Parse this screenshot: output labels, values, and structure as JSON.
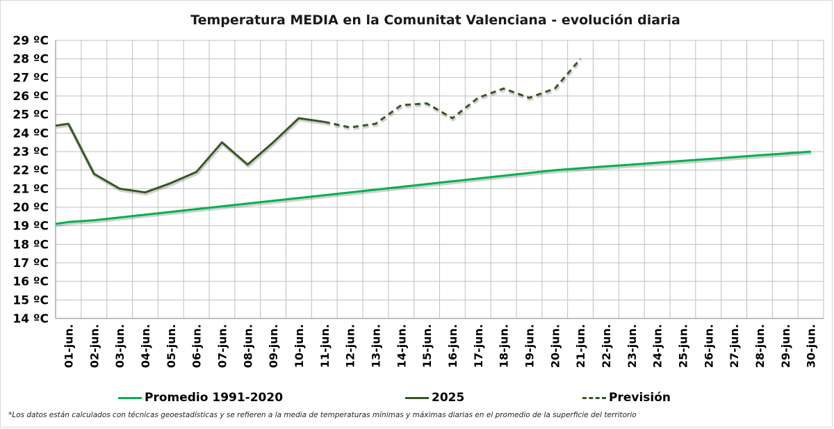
{
  "chart_data": {
    "type": "line",
    "title": "Temperatura MEDIA en la Comunitat Valenciana - evolución diaria",
    "ylim": [
      14,
      29
    ],
    "y_unit": "ºC",
    "y_ticks": [
      14,
      15,
      16,
      17,
      18,
      19,
      20,
      21,
      22,
      23,
      24,
      25,
      26,
      27,
      28,
      29
    ],
    "y_tick_labels": [
      "14 ºC",
      "15 ºC",
      "16 ºC",
      "17 ºC",
      "18 ºC",
      "19 ºC",
      "20 ºC",
      "21 ºC",
      "22 ºC",
      "23 ºC",
      "24 ºC",
      "25 ºC",
      "26 ºC",
      "27 ºC",
      "28 ºC",
      "29 ºC"
    ],
    "categories": [
      "01-jun.",
      "02-jun.",
      "03-jun.",
      "04-jun.",
      "05-jun.",
      "06-jun.",
      "07-jun.",
      "08-jun.",
      "09-jun.",
      "10-jun.",
      "11-jun.",
      "12-jun.",
      "13-jun.",
      "14-jun.",
      "15-jun.",
      "16-jun.",
      "17-jun.",
      "18-jun.",
      "19-jun.",
      "20-jun.",
      "21-jun.",
      "22-jun.",
      "23-jun.",
      "24-jun.",
      "25-jun.",
      "26-jun.",
      "27-jun.",
      "28-jun.",
      "29-jun.",
      "30-jun."
    ],
    "grid": true,
    "legend_position": "bottom",
    "series": [
      {
        "name": "Promedio 1991-2020",
        "color": "#00b050",
        "style": "solid",
        "start_value": 19.1,
        "values": [
          19.2,
          19.3,
          19.45,
          19.6,
          19.75,
          19.9,
          20.05,
          20.2,
          20.35,
          20.5,
          20.65,
          20.8,
          20.95,
          21.1,
          21.25,
          21.4,
          21.55,
          21.7,
          21.85,
          22.0,
          22.1,
          22.2,
          22.3,
          22.4,
          22.5,
          22.6,
          22.7,
          22.8,
          22.9,
          23.0
        ]
      },
      {
        "name": "2025",
        "color": "#375623",
        "style": "solid",
        "start_value": 24.4,
        "values": [
          24.5,
          21.8,
          21.0,
          20.8,
          21.3,
          21.9,
          23.5,
          22.3,
          23.5,
          24.8,
          24.6,
          null,
          null,
          null,
          null,
          null,
          null,
          null,
          null,
          null,
          null,
          null,
          null,
          null,
          null,
          null,
          null,
          null,
          null,
          null
        ]
      },
      {
        "name": "Previsión",
        "color": "#375623",
        "style": "dashed",
        "values": [
          null,
          null,
          null,
          null,
          null,
          null,
          null,
          null,
          null,
          null,
          24.6,
          24.3,
          24.5,
          25.5,
          25.6,
          24.8,
          25.9,
          26.4,
          25.9,
          26.4,
          28.0,
          null,
          null,
          null,
          null,
          null,
          null,
          null,
          null,
          null
        ]
      }
    ]
  },
  "footnote": "*Los datos están calculados con técnicas geoestadísticas y se refieren a la media de temperaturas mínimas y máximas diarias en el promedio de la superficie del territorio"
}
